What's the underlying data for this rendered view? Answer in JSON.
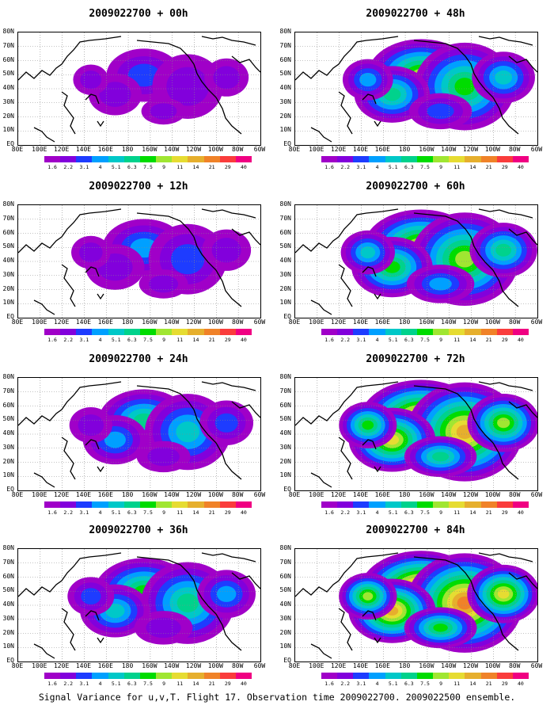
{
  "caption": "Signal Variance for u,v,T. Flight 17. Observation time 2009022700. 2009022500 ensemble.",
  "lat_labels": [
    "80N",
    "70N",
    "60N",
    "50N",
    "40N",
    "30N",
    "20N",
    "10N",
    "EQ"
  ],
  "lon_labels": [
    "80E",
    "100E",
    "120E",
    "140E",
    "160E",
    "180",
    "160W",
    "140W",
    "120W",
    "100W",
    "80W",
    "60W"
  ],
  "colorbar_labels": [
    "1.6",
    "2.2",
    "3.1",
    "4",
    "5.1",
    "6.3",
    "7.5",
    "9",
    "11",
    "14",
    "21",
    "29",
    "40"
  ],
  "colorbar_colors": [
    "#a000c8",
    "#8200dc",
    "#1e3cff",
    "#00a0ff",
    "#00c8c8",
    "#00d28c",
    "#00dc00",
    "#a0e632",
    "#e6dc32",
    "#e6af2d",
    "#f08228",
    "#fa3c3c",
    "#f00082"
  ],
  "panels": [
    {
      "title": "2009022700 + 00h",
      "lead": 0
    },
    {
      "title": "2009022700 + 48h",
      "lead": 48
    },
    {
      "title": "2009022700 + 12h",
      "lead": 12
    },
    {
      "title": "2009022700 + 60h",
      "lead": 60
    },
    {
      "title": "2009022700 + 24h",
      "lead": 24
    },
    {
      "title": "2009022700 + 72h",
      "lead": 72
    },
    {
      "title": "2009022700 + 36h",
      "lead": 36
    },
    {
      "title": "2009022700 + 84h",
      "lead": 84
    }
  ]
}
